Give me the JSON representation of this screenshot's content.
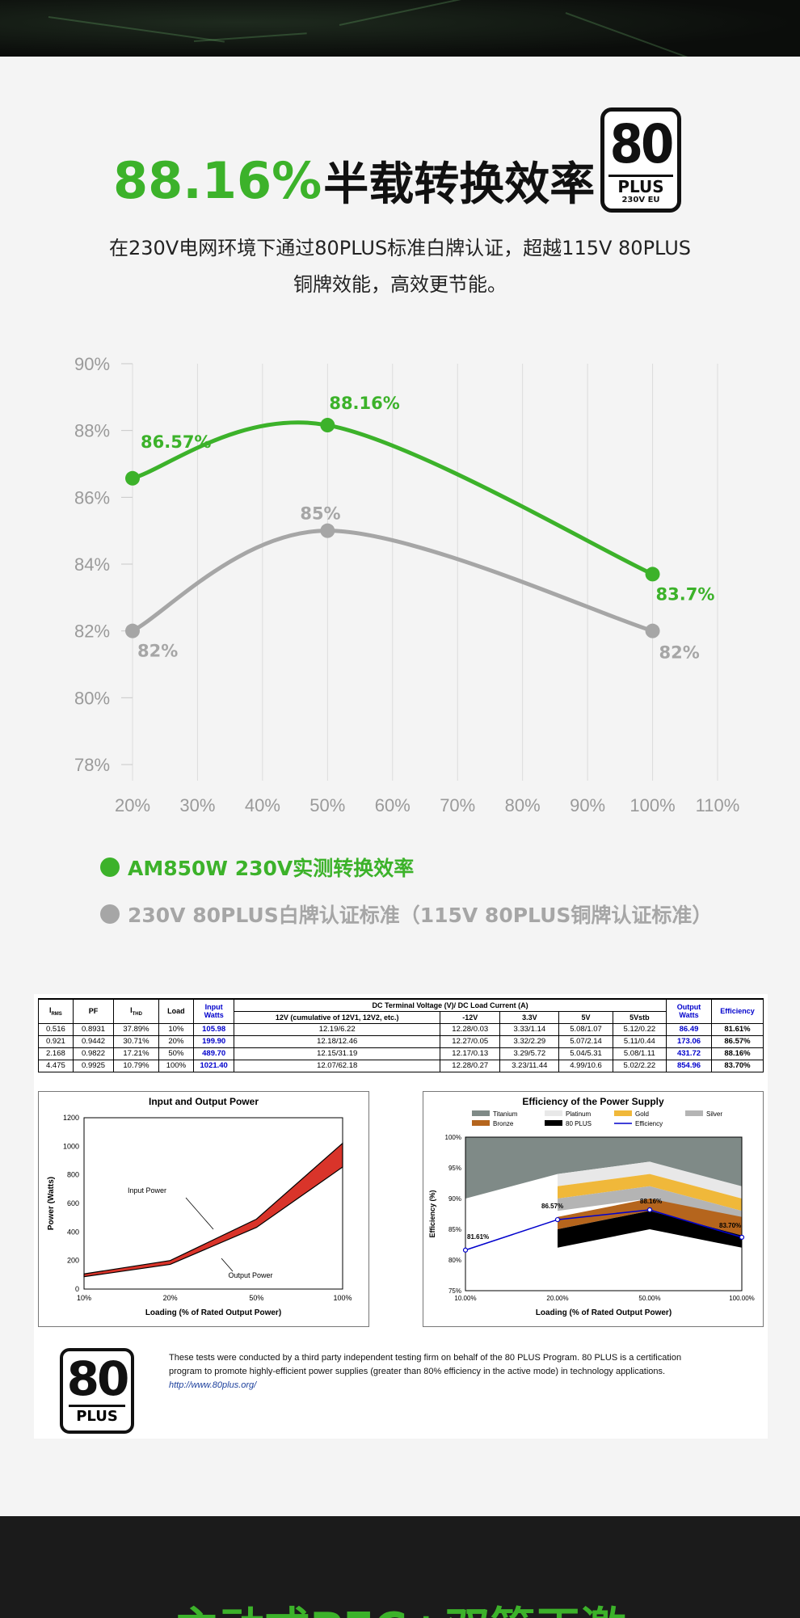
{
  "headline": {
    "percent": "88.16%",
    "text": "半载转换效率"
  },
  "badge_top": {
    "number": "80",
    "plus": "PLUS",
    "region": "230V EU"
  },
  "description": {
    "line1": "在230V电网环境下通过80PLUS标准白牌认证，超越115V 80PLUS",
    "line2": "铜牌效能，高效更节能。"
  },
  "chart_data": {
    "type": "line",
    "x_ticks": [
      "20%",
      "30%",
      "40%",
      "50%",
      "60%",
      "70%",
      "80%",
      "90%",
      "100%",
      "110%"
    ],
    "y_ticks": [
      "78%",
      "80%",
      "82%",
      "84%",
      "86%",
      "88%",
      "90%"
    ],
    "xlim": [
      20,
      110
    ],
    "ylim": [
      78,
      90
    ],
    "grid": true,
    "legend_placement": "bottom",
    "series": [
      {
        "name": "AM850W 230V实测转换效率",
        "color": "#3cb22a",
        "x": [
          20,
          50,
          100
        ],
        "y": [
          86.57,
          88.16,
          83.7
        ],
        "labels": [
          "86.57%",
          "88.16%",
          "83.7%"
        ]
      },
      {
        "name": "230V 80PLUS白牌认证标准（115V 80PLUS铜牌认证标准）",
        "color": "#a6a6a6",
        "x": [
          20,
          50,
          100
        ],
        "y": [
          82,
          85,
          82
        ],
        "labels": [
          "82%",
          "85%",
          "82%"
        ]
      }
    ]
  },
  "report": {
    "headers": {
      "irms": "I",
      "irms_sub": "RMS",
      "pf": "PF",
      "ithd": "I",
      "ithd_sub": "THD",
      "load": "Load",
      "input_watts": "Input Watts",
      "dc_group": "DC Terminal Voltage (V)/ DC Load Current (A)",
      "v12": "12V (cumulative of 12V1, 12V2, etc.)",
      "vm12": "-12V",
      "v33": "3.3V",
      "v5": "5V",
      "v5sb": "5Vstb",
      "output_watts": "Output Watts",
      "efficiency": "Efficiency"
    },
    "rows": [
      [
        "0.516",
        "0.8931",
        "37.89%",
        "10%",
        "105.98",
        "12.19/6.22",
        "12.28/0.03",
        "3.33/1.14",
        "5.08/1.07",
        "5.12/0.22",
        "86.49",
        "81.61%"
      ],
      [
        "0.921",
        "0.9442",
        "30.71%",
        "20%",
        "199.90",
        "12.18/12.46",
        "12.27/0.05",
        "3.32/2.29",
        "5.07/2.14",
        "5.11/0.44",
        "173.06",
        "86.57%"
      ],
      [
        "2.168",
        "0.9822",
        "17.21%",
        "50%",
        "489.70",
        "12.15/31.19",
        "12.17/0.13",
        "3.29/5.72",
        "5.04/5.31",
        "5.08/1.11",
        "431.72",
        "88.16%"
      ],
      [
        "4.475",
        "0.9925",
        "10.79%",
        "100%",
        "1021.40",
        "12.07/62.18",
        "12.28/0.27",
        "3.23/11.44",
        "4.99/10.6",
        "5.02/2.22",
        "854.96",
        "83.70%"
      ]
    ],
    "power_chart": {
      "title": "Input and Output Power",
      "ylabel": "Power (Watts)",
      "xlabel": "Loading (% of Rated Output Power)",
      "y_ticks": [
        "0",
        "200",
        "400",
        "600",
        "800",
        "1000",
        "1200"
      ],
      "x_ticks": [
        "10%",
        "20%",
        "50%",
        "100%"
      ],
      "input_label": "Input Power",
      "output_label": "Output Power"
    },
    "efficiency_chart": {
      "title": "Efficiency of the Power Supply",
      "ylabel": "Efficiency (%)",
      "xlabel": "Loading (% of Rated Output Power)",
      "y_ticks": [
        "75%",
        "80%",
        "85%",
        "90%",
        "95%",
        "100%"
      ],
      "x_ticks": [
        "10.00%",
        "20.00%",
        "50.00%",
        "100.00%"
      ],
      "legend": [
        "Titanium",
        "Platinum",
        "Gold",
        "Silver",
        "Bronze",
        "80 PLUS",
        "Efficiency"
      ],
      "legend_colors": [
        "#7f8a87",
        "#e8e8e8",
        "#f0b83a",
        "#b4b4b4",
        "#b5651d",
        "#000000",
        "#0000cc"
      ],
      "point_labels": [
        "81.61%",
        "86.57%",
        "88.16%",
        "83.70%"
      ]
    },
    "badge": {
      "number": "80",
      "plus": "PLUS"
    },
    "disclaimer": "These tests were conducted by a third party independent testing firm on behalf of the 80 PLUS Program. 80 PLUS is a certification program to promote highly-efficient power supplies (greater than 80% efficiency in the active mode) in technology applications.",
    "link": "http://www.80plus.org/"
  },
  "bottom_band": {
    "title": "主动式PFC+双管正激"
  }
}
